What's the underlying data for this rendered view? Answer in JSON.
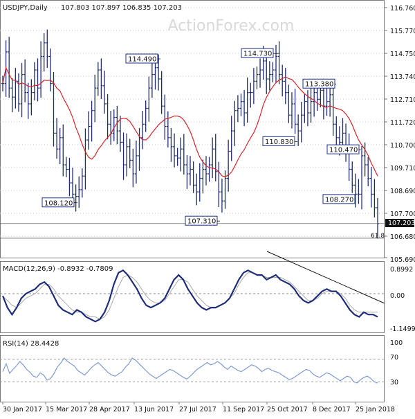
{
  "header": {
    "symbol": "USDJPY,Daily",
    "ohlc": "107.803 107.897 106.835 107.203"
  },
  "watermark": "ActionForex.com",
  "colors": {
    "price_bar": "#1e2c6e",
    "ma": "#d8232a",
    "macd": "#1e2c7a",
    "signal": "#a9a9a9",
    "rsi": "#7f9ad2",
    "annotation": "#1b2f8a",
    "grid": "#c4c4c4"
  },
  "chart_data": [
    {
      "type": "ohlc-bar",
      "title": "USDJPY,Daily",
      "ylim": [
        105.69,
        116.76
      ],
      "y_ticks": [
        "116.760",
        "115.770",
        "114.750",
        "113.740",
        "112.710",
        "111.720",
        "110.700",
        "109.710",
        "108.690",
        "107.700",
        "106.680",
        "105.690"
      ],
      "x_ticks": [
        "30 Jan 2017",
        "15 Mar 2017",
        "28 Apr 2017",
        "13 Jun 2017",
        "27 Jul 2017",
        "11 Sep 2017",
        "25 Oct 2017",
        "8 Dec 2017",
        "25 Jan 2018"
      ],
      "last_price": "107.203",
      "fib_label": "61.8",
      "horizontal_lines": [
        107.2,
        106.55
      ],
      "series_close": [
        113.4,
        114.8,
        113.2,
        112.8,
        113.5,
        112.5,
        113.8,
        113.0,
        112.5,
        113.0,
        114.0,
        113.2,
        114.6,
        115.2,
        114.6,
        113.4,
        111.2,
        110.5,
        111.0,
        109.8,
        109.6,
        109.0,
        108.5,
        108.4,
        108.7,
        109.3,
        110.9,
        111.5,
        112.2,
        113.2,
        114.0,
        113.3,
        112.5,
        111.6,
        111.2,
        111.9,
        111.3,
        110.8,
        109.8,
        110.6,
        110.0,
        109.4,
        110.2,
        111.0,
        111.6,
        112.3,
        113.2,
        113.8,
        114.1,
        113.6,
        112.4,
        111.5,
        111.0,
        110.6,
        110.2,
        110.1,
        110.5,
        109.8,
        109.4,
        109.6,
        108.9,
        108.6,
        109.2,
        109.6,
        109.4,
        109.8,
        110.5,
        109.5,
        108.6,
        108.2,
        109.2,
        110.4,
        111.3,
        112.2,
        112.3,
        112.6,
        112.1,
        113.0,
        113.0,
        113.5,
        113.8,
        114.0,
        114.4,
        113.6,
        113.8,
        114.0,
        114.6,
        113.8,
        113.5,
        113.0,
        112.0,
        112.5,
        111.6,
        111.3,
        112.0,
        112.6,
        112.1,
        112.6,
        113.0,
        112.7,
        113.1,
        112.4,
        112.6,
        112.9,
        111.6,
        111.0,
        110.8,
        111.2,
        110.6,
        109.6,
        108.9,
        108.5,
        108.5,
        110.2,
        109.8,
        109.2,
        108.5,
        107.9,
        107.2
      ]
    },
    {
      "type": "line",
      "title": "MACD(12,26,9) -0.8932 -0.7809",
      "y_ticks": [
        "0.8992",
        "0.00",
        "-1.1499"
      ],
      "ylim": [
        -1.55,
        1.25
      ],
      "zero_line": 0.0,
      "series": [
        {
          "values": [
            -0.1,
            -0.6,
            -0.9,
            -0.6,
            -0.2,
            0.0,
            0.1,
            0.2,
            0.4,
            0.5,
            0.3,
            -0.1,
            -0.5,
            -0.7,
            -0.8,
            -0.9,
            -0.7,
            -0.8,
            -1.0,
            -1.1,
            -1.2,
            -1.1,
            -0.8,
            -0.3,
            0.4,
            0.9,
            1.0,
            0.8,
            0.5,
            0.2,
            -0.2,
            -0.5,
            -0.6,
            -0.5,
            -0.4,
            -0.2,
            0.2,
            0.6,
            0.8,
            0.6,
            0.2,
            -0.1,
            -0.4,
            -0.6,
            -0.7,
            -0.6,
            -0.6,
            -0.5,
            -0.4,
            -0.2,
            0.2,
            0.6,
            0.9,
            1.0,
            0.9,
            0.8,
            0.8,
            0.6,
            0.7,
            0.8,
            0.6,
            0.5,
            0.4,
            0.2,
            -0.1,
            -0.3,
            -0.4,
            -0.3,
            -0.1,
            0.1,
            0.2,
            0.1,
            0.1,
            -0.1,
            -0.4,
            -0.7,
            -0.9,
            -1.0,
            -0.8,
            -0.9,
            -0.9,
            -1.0
          ]
        },
        {
          "values": [
            -0.1,
            -0.3,
            -0.5,
            -0.6,
            -0.4,
            -0.2,
            -0.1,
            0.0,
            0.2,
            0.4,
            0.4,
            0.2,
            -0.1,
            -0.3,
            -0.5,
            -0.7,
            -0.8,
            -0.8,
            -0.9,
            -1.0,
            -1.0,
            -1.1,
            -1.0,
            -0.7,
            -0.2,
            0.3,
            0.7,
            0.8,
            0.7,
            0.5,
            0.2,
            -0.1,
            -0.3,
            -0.4,
            -0.4,
            -0.3,
            0.0,
            0.3,
            0.6,
            0.6,
            0.5,
            0.2,
            -0.1,
            -0.3,
            -0.5,
            -0.6,
            -0.6,
            -0.5,
            -0.4,
            -0.2,
            0.0,
            0.4,
            0.7,
            0.9,
            0.9,
            0.8,
            0.8,
            0.7,
            0.7,
            0.7,
            0.7,
            0.6,
            0.5,
            0.3,
            0.1,
            -0.1,
            -0.3,
            -0.3,
            -0.2,
            0.0,
            0.1,
            0.1,
            0.1,
            0.0,
            -0.2,
            -0.5,
            -0.7,
            -0.8,
            -0.8,
            -0.8,
            -0.8,
            -0.8
          ]
        }
      ]
    },
    {
      "type": "line",
      "title": "RSI(14) 28.4428",
      "y_ticks": [
        "100",
        "70",
        "30",
        "0"
      ],
      "ylim": [
        0,
        100
      ],
      "levels": [
        70,
        30
      ],
      "series": [
        {
          "values": [
            48,
            62,
            45,
            52,
            58,
            66,
            60,
            52,
            47,
            40,
            38,
            46,
            42,
            33,
            36,
            44,
            56,
            63,
            72,
            66,
            62,
            58,
            50,
            46,
            42,
            48,
            55,
            60,
            64,
            58,
            52,
            46,
            42,
            40,
            44,
            48,
            56,
            62,
            72,
            68,
            62,
            56,
            50,
            44,
            40,
            36,
            40,
            44,
            48,
            52,
            50,
            46,
            42,
            38,
            35,
            40,
            46,
            52,
            56,
            60,
            64,
            60,
            62,
            66,
            62,
            56,
            52,
            58,
            54,
            50,
            48,
            52,
            56,
            60,
            58,
            54,
            48,
            52,
            54,
            50,
            48,
            46,
            42,
            38,
            34,
            36,
            40,
            44,
            48,
            52,
            50,
            44,
            40,
            38,
            42,
            46,
            44,
            40,
            36,
            32,
            36,
            40,
            38,
            30,
            28,
            34,
            38,
            40,
            36,
            30,
            28
          ]
        }
      ]
    }
  ],
  "annotations": [
    {
      "label": "114.490",
      "value": 114.49
    },
    {
      "label": "114.730",
      "value": 114.73
    },
    {
      "label": "113.380",
      "value": 113.38
    },
    {
      "label": "110.830",
      "value": 110.83
    },
    {
      "label": "110.470",
      "value": 110.47
    },
    {
      "label": "108.120",
      "value": 108.12
    },
    {
      "label": "107.310",
      "value": 107.31
    },
    {
      "label": "108.270",
      "value": 108.27
    }
  ]
}
